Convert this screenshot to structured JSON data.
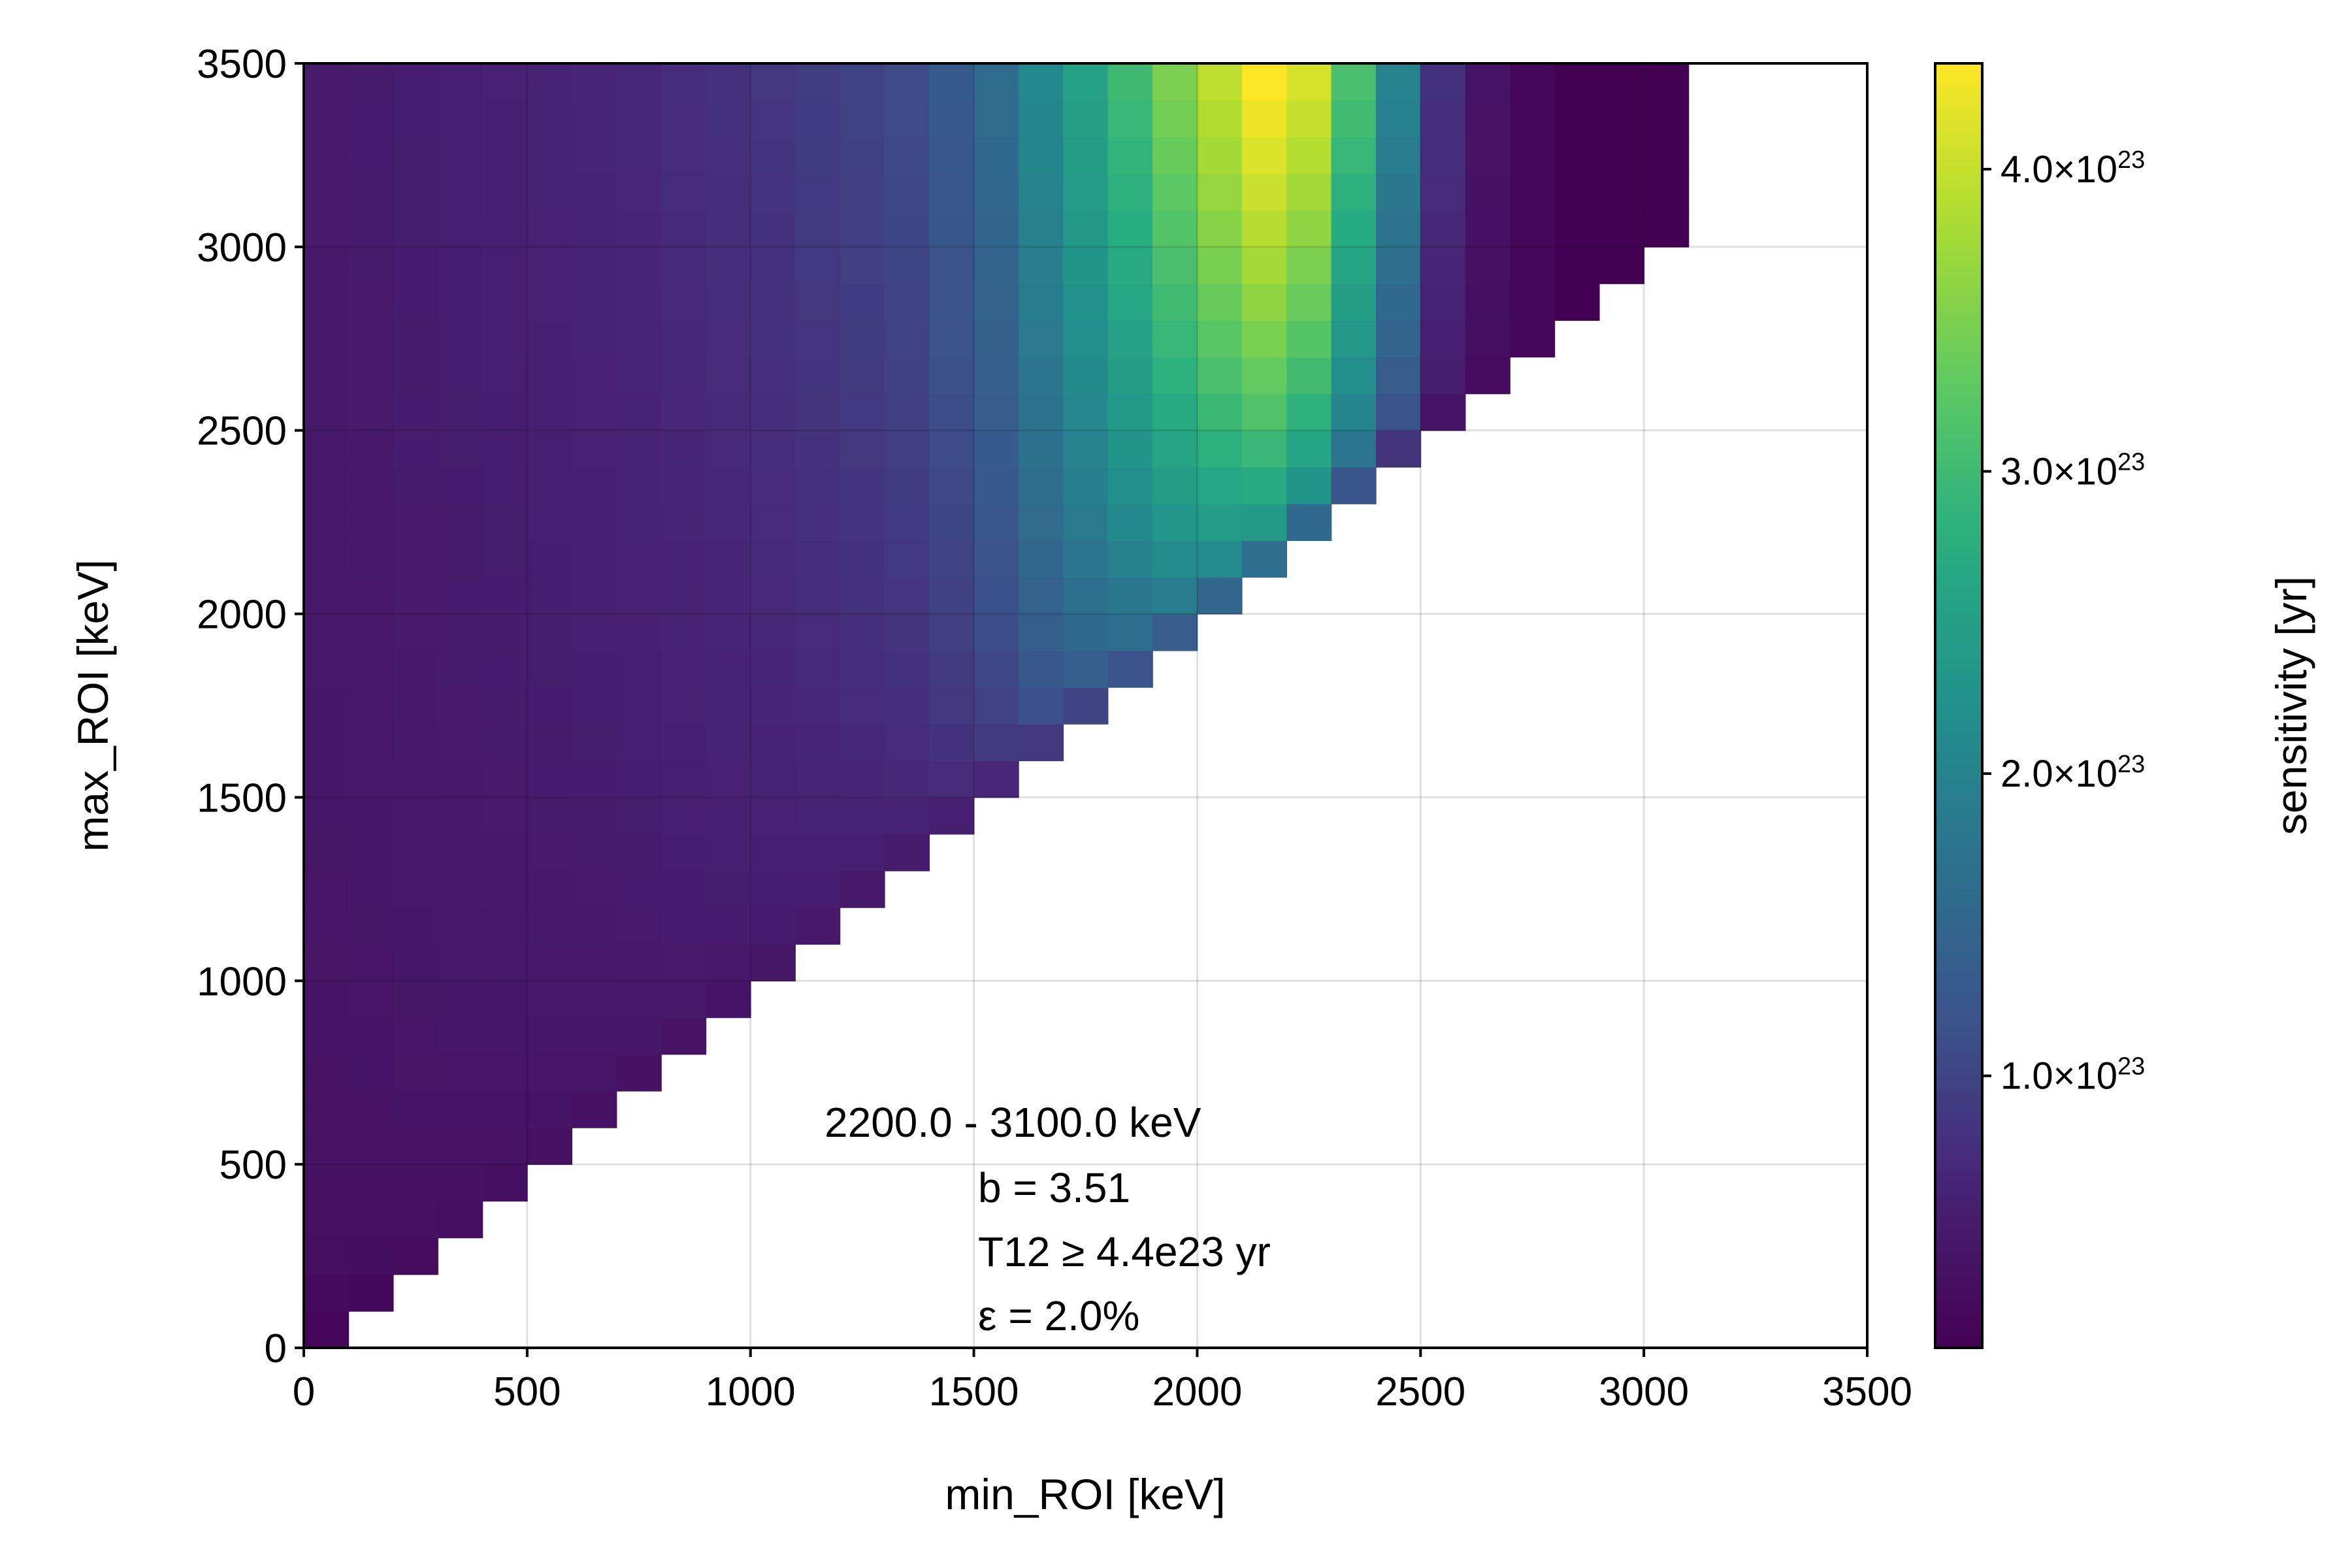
{
  "chart_data": {
    "type": "heatmap",
    "xlabel": "min_ROI [keV]",
    "ylabel": "max_ROI [keV]",
    "xlim": [
      0,
      3500
    ],
    "ylim": [
      0,
      3500
    ],
    "xticks": [
      "0",
      "500",
      "1000",
      "1500",
      "2000",
      "2500",
      "3000",
      "3500"
    ],
    "yticks": [
      "0",
      "500",
      "1000",
      "1500",
      "2000",
      "2500",
      "3000",
      "3500"
    ],
    "grid": true,
    "bin_width_kev": 100,
    "x_bins_start": 0,
    "x_bins_end": 3100,
    "y_bins_start": 0,
    "y_bins_end": 3500,
    "cell_rule": "cell drawn when max_ROI >= min_ROI",
    "colormap": "viridis",
    "color_range": [
      1e+22,
      4.35e+23
    ],
    "colorbar": {
      "label": "sensitivity [yr]",
      "position": "right",
      "ticks": [
        {
          "value": 1e+23,
          "mantissa": "1.0×10",
          "exponent": "23"
        },
        {
          "value": 2e+23,
          "mantissa": "2.0×10",
          "exponent": "23"
        },
        {
          "value": 3e+23,
          "mantissa": "3.0×10",
          "exponent": "23"
        },
        {
          "value": 4e+23,
          "mantissa": "4.0×10",
          "exponent": "23"
        }
      ]
    },
    "column_top_values": [
      5e+22,
      5.2e+22,
      5.5e+22,
      5.8e+22,
      6e+22,
      6.3e+22,
      6.6e+22,
      7e+22,
      7.5e+22,
      8e+22,
      8.6e+22,
      9.3e+22,
      1e+23,
      1.1e+23,
      1.3e+23,
      1.6e+23,
      2.1e+23,
      2.55e+23,
      3e+23,
      3.5e+23,
      3.95e+23,
      4.35e+23,
      4.1e+23,
      3.1e+23,
      2e+23,
      8e+22,
      4e+22,
      2e+22,
      1e+22,
      1e+22,
      1e+22
    ],
    "annotation": {
      "lines": [
        "2200.0 - 3100.0 keV",
        "b  = 3.51",
        "T12 ≥  4.4e23 yr",
        "ε = 2.0%"
      ]
    }
  }
}
